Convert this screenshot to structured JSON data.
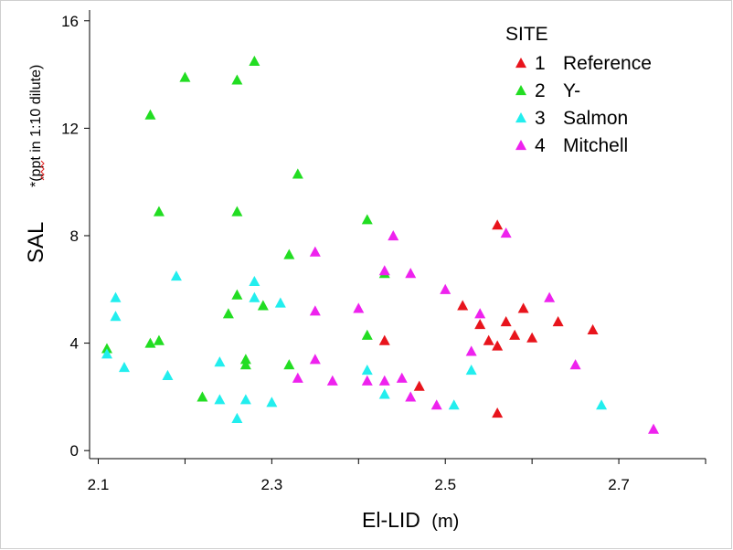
{
  "chart_data": {
    "type": "scatter",
    "xlabel": "El-LID",
    "xlabel_unit": "(m)",
    "ylabel": "SAL",
    "ylabel_note": "*(ppt in 1:10 dilute)",
    "xlim": [
      2.09,
      2.8
    ],
    "ylim": [
      -0.3,
      16.4
    ],
    "xticks": [
      2.1,
      2.3,
      2.5,
      2.7
    ],
    "yticks": [
      0,
      4,
      8,
      12,
      16
    ],
    "xtick_labels": [
      "2.1",
      "2.3",
      "2.5",
      "2.7"
    ],
    "ytick_labels": [
      "0",
      "4",
      "8",
      "12",
      "16"
    ],
    "grid": false,
    "legend_position": "top-right",
    "legend": {
      "title": "SITE",
      "entries": [
        {
          "num": "1",
          "label": "Reference"
        },
        {
          "num": "2",
          "label": "Y-"
        },
        {
          "num": "3",
          "label": "Salmon"
        },
        {
          "num": "4",
          "label": "Mitchell"
        }
      ]
    },
    "series": [
      {
        "color": "#e8141c",
        "points": [
          [
            2.43,
            4.1
          ],
          [
            2.47,
            2.4
          ],
          [
            2.52,
            5.4
          ],
          [
            2.54,
            4.7
          ],
          [
            2.55,
            4.1
          ],
          [
            2.56,
            8.4
          ],
          [
            2.56,
            1.4
          ],
          [
            2.56,
            3.9
          ],
          [
            2.57,
            4.8
          ],
          [
            2.58,
            4.3
          ],
          [
            2.59,
            5.3
          ],
          [
            2.6,
            4.2
          ],
          [
            2.63,
            4.8
          ],
          [
            2.67,
            4.5
          ]
        ]
      },
      {
        "color": "#22dd22",
        "points": [
          [
            2.11,
            3.8
          ],
          [
            2.16,
            12.5
          ],
          [
            2.16,
            4.0
          ],
          [
            2.17,
            8.9
          ],
          [
            2.17,
            4.1
          ],
          [
            2.2,
            13.9
          ],
          [
            2.22,
            2.0
          ],
          [
            2.25,
            5.1
          ],
          [
            2.26,
            13.8
          ],
          [
            2.26,
            8.9
          ],
          [
            2.26,
            5.8
          ],
          [
            2.27,
            3.4
          ],
          [
            2.27,
            3.2
          ],
          [
            2.28,
            14.5
          ],
          [
            2.29,
            5.4
          ],
          [
            2.32,
            7.3
          ],
          [
            2.32,
            3.2
          ],
          [
            2.33,
            10.3
          ],
          [
            2.41,
            8.6
          ],
          [
            2.41,
            4.3
          ],
          [
            2.43,
            6.6
          ]
        ]
      },
      {
        "color": "#22eeee",
        "points": [
          [
            2.11,
            3.6
          ],
          [
            2.12,
            5.7
          ],
          [
            2.12,
            5.0
          ],
          [
            2.13,
            3.1
          ],
          [
            2.18,
            2.8
          ],
          [
            2.19,
            6.5
          ],
          [
            2.24,
            3.3
          ],
          [
            2.24,
            1.9
          ],
          [
            2.26,
            1.2
          ],
          [
            2.27,
            1.9
          ],
          [
            2.28,
            6.3
          ],
          [
            2.28,
            5.7
          ],
          [
            2.3,
            1.8
          ],
          [
            2.31,
            5.5
          ],
          [
            2.41,
            3.0
          ],
          [
            2.43,
            2.1
          ],
          [
            2.51,
            1.7
          ],
          [
            2.53,
            3.0
          ],
          [
            2.68,
            1.7
          ]
        ]
      },
      {
        "color": "#ee22ee",
        "points": [
          [
            2.33,
            2.7
          ],
          [
            2.35,
            7.4
          ],
          [
            2.35,
            5.2
          ],
          [
            2.35,
            3.4
          ],
          [
            2.37,
            2.6
          ],
          [
            2.4,
            5.3
          ],
          [
            2.41,
            2.6
          ],
          [
            2.43,
            6.7
          ],
          [
            2.43,
            2.6
          ],
          [
            2.44,
            8.0
          ],
          [
            2.45,
            2.7
          ],
          [
            2.46,
            6.6
          ],
          [
            2.46,
            2.0
          ],
          [
            2.49,
            1.7
          ],
          [
            2.5,
            6.0
          ],
          [
            2.53,
            3.7
          ],
          [
            2.54,
            5.1
          ],
          [
            2.57,
            8.1
          ],
          [
            2.62,
            5.7
          ],
          [
            2.65,
            3.2
          ],
          [
            2.74,
            0.8
          ]
        ]
      }
    ]
  }
}
